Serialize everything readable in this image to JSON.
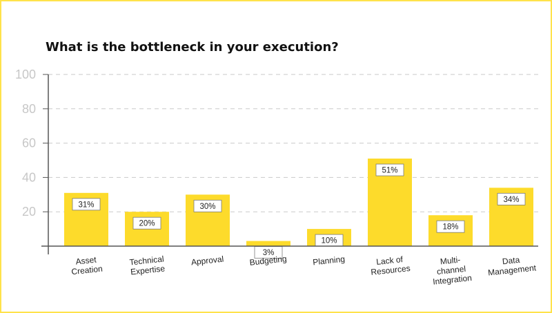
{
  "colors": {
    "bar": "#FDDB2B",
    "border": "#FFE24A",
    "grid": "#c9c9c9",
    "axis": "#555555",
    "tick_text": "#c7c7c7"
  },
  "chart_data": {
    "type": "bar",
    "title": "What is the bottleneck in your execution?",
    "xlabel": "",
    "ylabel": "",
    "ylim": [
      0,
      100
    ],
    "yticks": [
      20,
      40,
      60,
      80,
      100
    ],
    "grid": true,
    "categories": [
      [
        "Asset",
        "Creation"
      ],
      [
        "Technical",
        "Expertise"
      ],
      [
        "Approval"
      ],
      [
        "Budgeting"
      ],
      [
        "Planning"
      ],
      [
        "Lack of",
        "Resources"
      ],
      [
        "Multi-",
        "channel",
        "Integration"
      ],
      [
        "Data",
        "Management"
      ]
    ],
    "values": [
      31,
      20,
      30,
      3,
      10,
      51,
      18,
      34
    ],
    "value_labels": [
      "31%",
      "20%",
      "30%",
      "3%",
      "10%",
      "51%",
      "18%",
      "34%"
    ]
  }
}
